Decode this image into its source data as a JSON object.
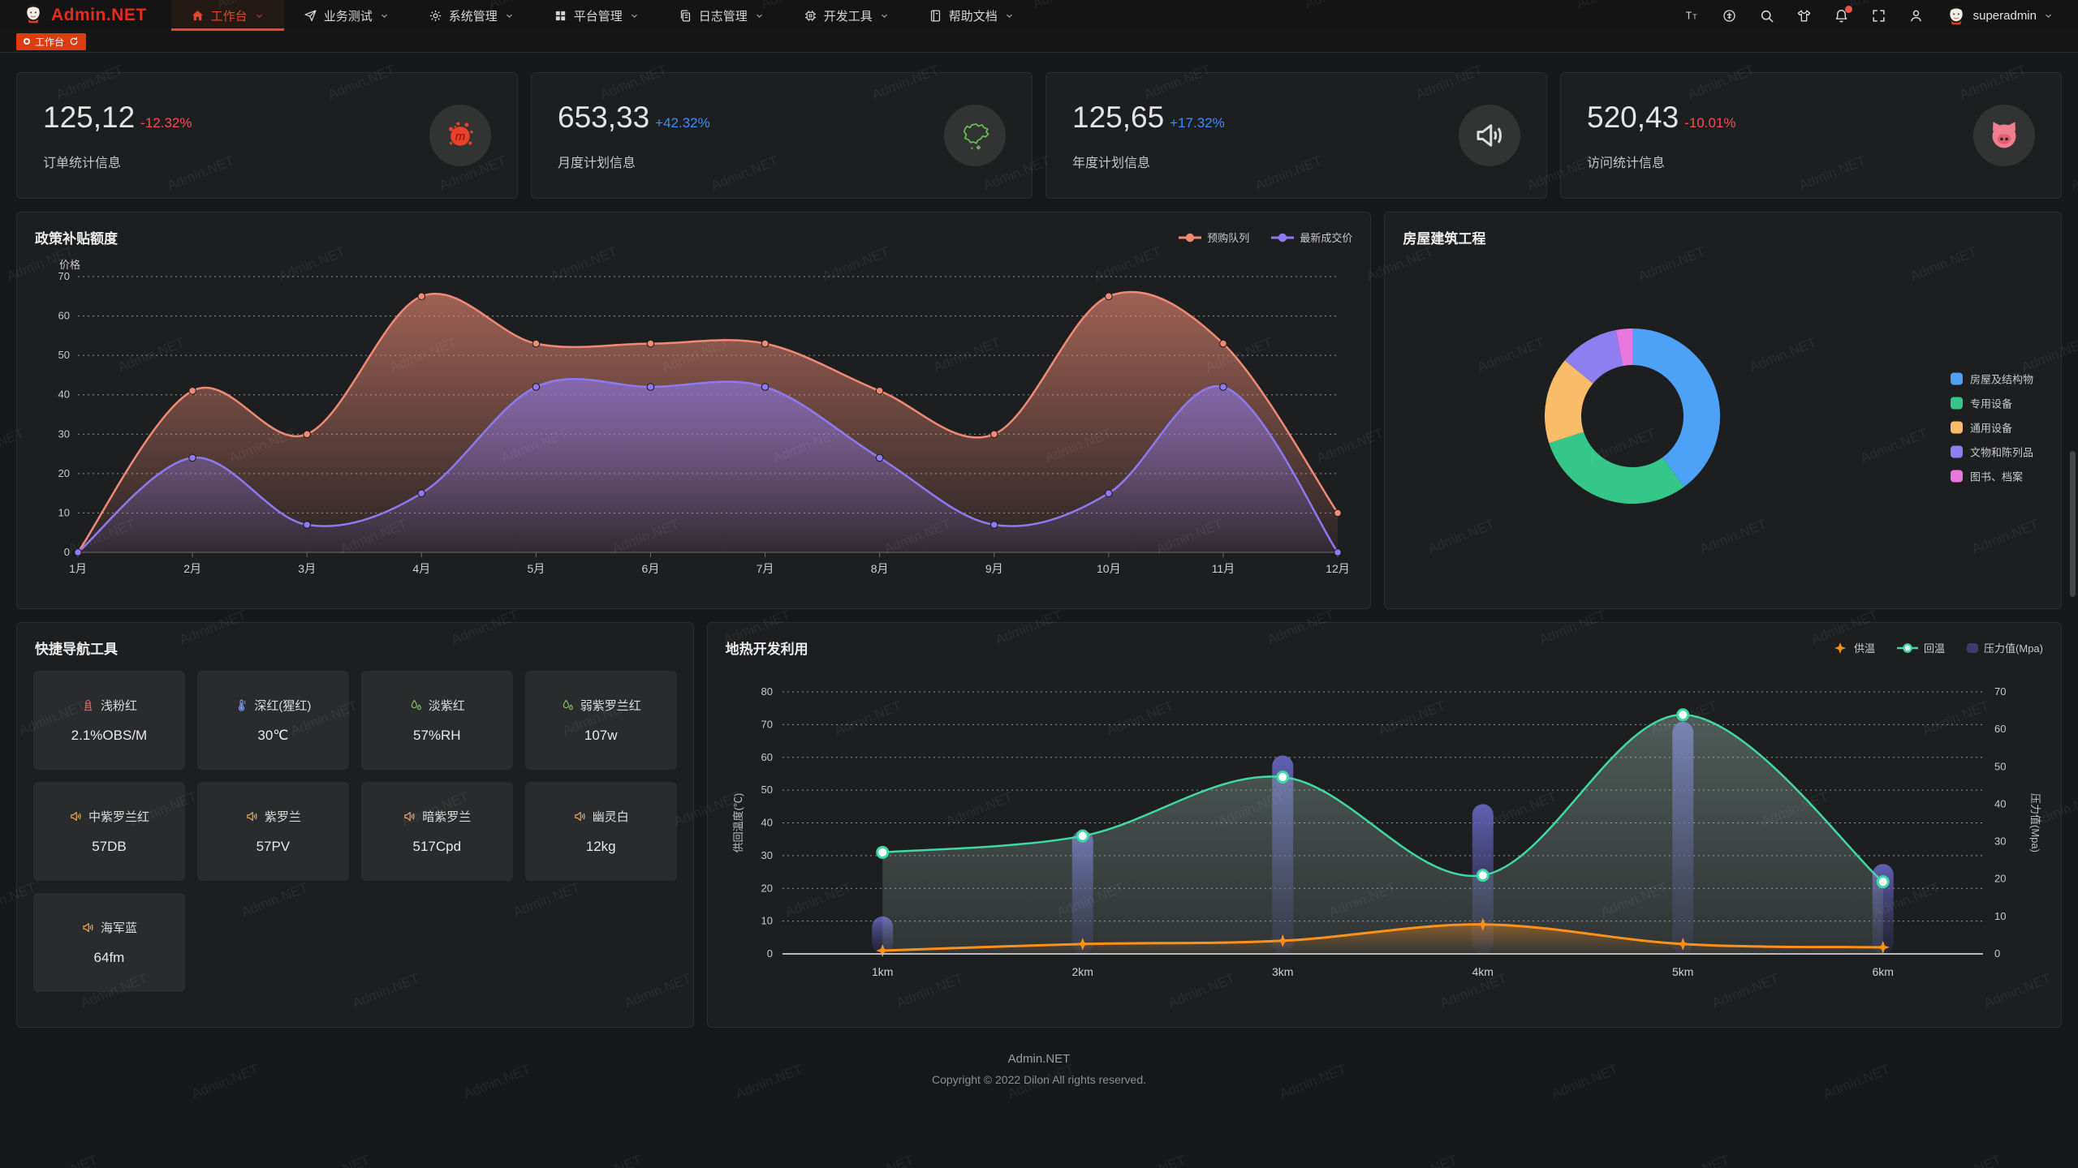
{
  "watermark": "Admin.NET",
  "header": {
    "logo": "Admin.NET",
    "menu": [
      {
        "label": "工作台",
        "icon": "home",
        "active": true
      },
      {
        "label": "业务测试",
        "icon": "send"
      },
      {
        "label": "系统管理",
        "icon": "gear"
      },
      {
        "label": "平台管理",
        "icon": "grid"
      },
      {
        "label": "日志管理",
        "icon": "docs"
      },
      {
        "label": "开发工具",
        "icon": "chip"
      },
      {
        "label": "帮助文档",
        "icon": "book"
      }
    ],
    "icons": [
      "font-size",
      "language",
      "search",
      "theme",
      "notification",
      "fullscreen",
      "profile"
    ],
    "user": "superadmin"
  },
  "tabbar": {
    "active_tab": "工作台"
  },
  "stats": [
    {
      "value": "125,12",
      "delta": "-12.32%",
      "trend": "down",
      "label": "订单统计信息",
      "icon": "meetup-splat"
    },
    {
      "value": "653,33",
      "delta": "+42.32%",
      "trend": "up",
      "label": "月度计划信息",
      "icon": "china-map"
    },
    {
      "value": "125,65",
      "delta": "+17.32%",
      "trend": "up",
      "label": "年度计划信息",
      "icon": "speaker"
    },
    {
      "value": "520,43",
      "delta": "-10.01%",
      "trend": "down",
      "label": "访问统计信息",
      "icon": "pig"
    }
  ],
  "cards": {
    "subsidy": {
      "title": "政策补贴额度"
    },
    "building": {
      "title": "房屋建筑工程"
    },
    "quicknav": {
      "title": "快捷导航工具"
    },
    "geothermal": {
      "title": "地热开发利用"
    }
  },
  "quicknav_items": [
    {
      "name": "浅粉红",
      "value": "2.1%OBS/M",
      "icon": "hydrant",
      "icon_color": "#e06060"
    },
    {
      "name": "深红(猩红)",
      "value": "30℃",
      "icon": "thermometer",
      "icon_color": "#7b9df5"
    },
    {
      "name": "淡紫红",
      "value": "57%RH",
      "icon": "humidity",
      "icon_color": "#86c566"
    },
    {
      "name": "弱紫罗兰红",
      "value": "107w",
      "icon": "humidity",
      "icon_color": "#86c566"
    },
    {
      "name": "中紫罗兰红",
      "value": "57DB",
      "icon": "speaker",
      "icon_color": "#e8a85c"
    },
    {
      "name": "紫罗兰",
      "value": "57PV",
      "icon": "speaker",
      "icon_color": "#e8a85c"
    },
    {
      "name": "暗紫罗兰",
      "value": "517Cpd",
      "icon": "speaker",
      "icon_color": "#e8a85c"
    },
    {
      "name": "幽灵白",
      "value": "12kg",
      "icon": "speaker",
      "icon_color": "#e8a85c"
    },
    {
      "name": "海军蓝",
      "value": "64fm",
      "icon": "speaker",
      "icon_color": "#e8a85c"
    }
  ],
  "footer": {
    "line1": "Admin.NET",
    "line2": "Copyright © 2022 Dilon All rights reserved."
  },
  "colors": {
    "accent_red": "#dc3c10",
    "delta_down": "#f64e4e",
    "delta_up": "#3f8cff"
  },
  "chart_data": [
    {
      "id": "subsidy",
      "type": "area",
      "title": "政策补贴额度",
      "ylabel": "价格",
      "categories": [
        "1月",
        "2月",
        "3月",
        "4月",
        "5月",
        "6月",
        "7月",
        "8月",
        "9月",
        "10月",
        "11月",
        "12月"
      ],
      "series": [
        {
          "name": "预购队列",
          "color": "#ef8a74",
          "values": [
            0,
            41,
            30,
            65,
            53,
            53,
            53,
            41,
            30,
            65,
            53,
            10
          ]
        },
        {
          "name": "最新成交价",
          "color": "#8d79f0",
          "values": [
            0,
            24,
            7,
            15,
            42,
            42,
            42,
            24,
            7,
            15,
            42,
            0
          ]
        }
      ],
      "ylim": [
        0,
        70
      ],
      "ytick_step": 10,
      "grid": "dashed",
      "legend_position": "top-right"
    },
    {
      "id": "building",
      "type": "pie",
      "title": "房屋建筑工程",
      "labels": [
        "房屋及结构物",
        "专用设备",
        "通用设备",
        "文物和陈列品",
        "图书、档案"
      ],
      "values": [
        40,
        30,
        16,
        11,
        3
      ],
      "colors": [
        "#4da1f7",
        "#35c78a",
        "#f9bc69",
        "#8f7df2",
        "#ea77dd"
      ],
      "legend_position": "right"
    },
    {
      "id": "geothermal",
      "type": "mixed",
      "title": "地热开发利用",
      "categories": [
        "1km",
        "2km",
        "3km",
        "4km",
        "5km",
        "6km"
      ],
      "ylabel_left": "供回温度(℃)",
      "ylabel_right": "压力值(Mpa)",
      "ylim_left": [
        0,
        80
      ],
      "ylim_right": [
        0,
        70
      ],
      "series": [
        {
          "name": "供温",
          "type": "line",
          "axis": "left",
          "color": "#ff9118",
          "symbol": "star",
          "values": [
            1,
            3,
            4,
            9,
            3,
            2
          ]
        },
        {
          "name": "回温",
          "type": "line",
          "axis": "left",
          "color": "#3fd9a4",
          "symbol": "circle",
          "values": [
            31,
            36,
            54,
            24,
            73,
            22
          ]
        },
        {
          "name": "压力值(Mpa)",
          "type": "bar",
          "axis": "right",
          "color": "#4a4a8e",
          "values": [
            10,
            33,
            53,
            40,
            62,
            24
          ]
        }
      ],
      "legend_position": "top-right"
    }
  ]
}
